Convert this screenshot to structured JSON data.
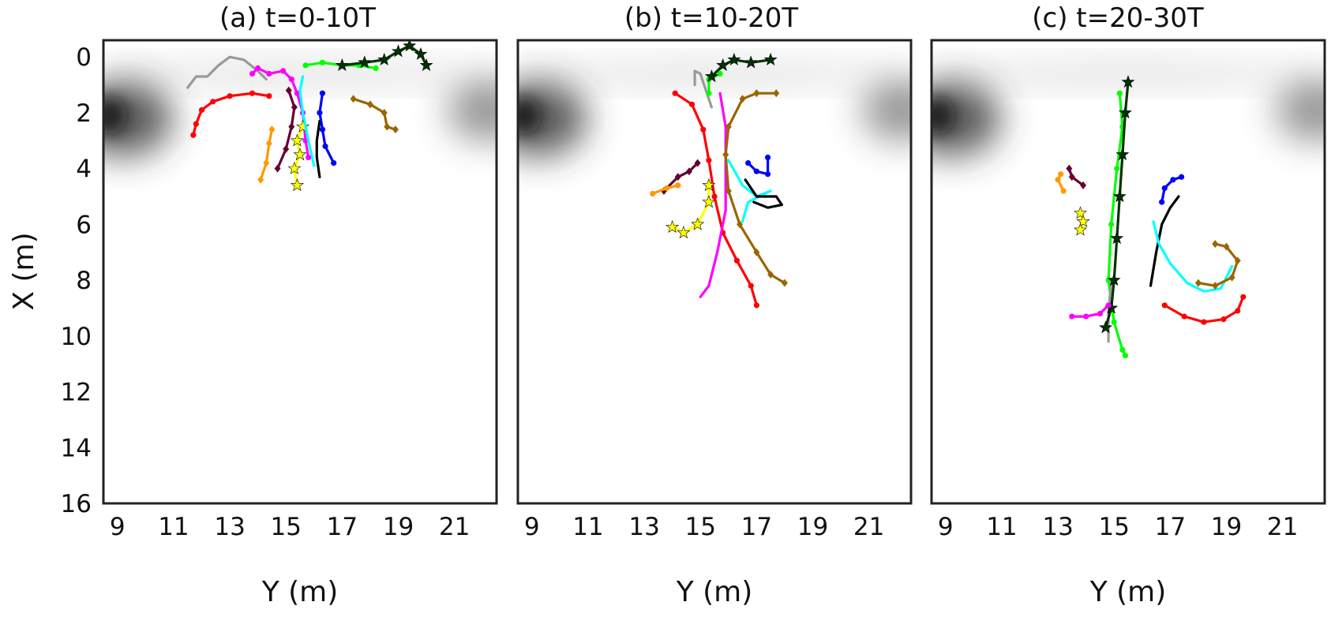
{
  "chart_data": [
    {
      "type": "line",
      "panel": "a",
      "title": "(a) t=0-10T",
      "xlabel": "Y (m)",
      "ylabel": "X (m)",
      "xlim": [
        8.5,
        22.5
      ],
      "ylim": [
        16,
        -0.6
      ],
      "xticks": [
        9,
        11,
        13,
        15,
        17,
        19,
        21
      ],
      "yticks": [
        0,
        2,
        4,
        6,
        8,
        10,
        12,
        14,
        16
      ],
      "background": "grayscale density, dark at upper-left and upper-right edges",
      "series": [
        {
          "color": "#ff0000",
          "marker": "dot",
          "points": [
            [
              11.7,
              2.8
            ],
            [
              11.8,
              2.4
            ],
            [
              12.0,
              1.9
            ],
            [
              12.4,
              1.6
            ],
            [
              13.0,
              1.4
            ],
            [
              13.8,
              1.3
            ],
            [
              14.4,
              1.4
            ]
          ]
        },
        {
          "color": "#999999",
          "marker": "none",
          "points": [
            [
              11.5,
              1.1
            ],
            [
              11.8,
              0.7
            ],
            [
              12.2,
              0.7
            ],
            [
              12.6,
              0.3
            ],
            [
              13.0,
              0.0
            ],
            [
              13.5,
              0.1
            ],
            [
              14.0,
              0.5
            ],
            [
              14.3,
              0.8
            ]
          ]
        },
        {
          "color": "#ff00ff",
          "marker": "dot",
          "points": [
            [
              13.8,
              0.6
            ],
            [
              14.0,
              0.4
            ],
            [
              14.4,
              0.6
            ],
            [
              14.9,
              0.5
            ],
            [
              15.2,
              0.8
            ],
            [
              15.4,
              1.3
            ],
            [
              15.6,
              2.0
            ],
            [
              15.7,
              3.0
            ],
            [
              15.8,
              3.6
            ]
          ]
        },
        {
          "color": "#ff9900",
          "marker": "diamond",
          "points": [
            [
              14.1,
              4.4
            ],
            [
              14.3,
              3.8
            ],
            [
              14.4,
              3.1
            ],
            [
              14.5,
              2.6
            ]
          ]
        },
        {
          "color": "#660033",
          "marker": "diamond",
          "points": [
            [
              14.7,
              4.0
            ],
            [
              15.0,
              3.3
            ],
            [
              15.2,
              2.5
            ],
            [
              15.3,
              1.8
            ],
            [
              15.1,
              1.2
            ]
          ]
        },
        {
          "color": "#ffff00",
          "marker": "star",
          "points": [
            [
              15.4,
              4.6
            ],
            [
              15.3,
              4.0
            ],
            [
              15.5,
              3.5
            ],
            [
              15.4,
              3.0
            ],
            [
              15.6,
              2.5
            ]
          ]
        },
        {
          "color": "#00ffff",
          "marker": "none",
          "points": [
            [
              16.0,
              3.9
            ],
            [
              15.8,
              3.0
            ],
            [
              15.6,
              2.0
            ],
            [
              15.5,
              1.2
            ],
            [
              15.6,
              0.7
            ]
          ]
        },
        {
          "color": "#000000",
          "marker": "none",
          "points": [
            [
              16.2,
              4.3
            ],
            [
              16.1,
              3.6
            ],
            [
              16.1,
              3.0
            ],
            [
              16.2,
              2.3
            ]
          ]
        },
        {
          "color": "#0000ff",
          "marker": "dot",
          "points": [
            [
              16.3,
              1.3
            ],
            [
              16.2,
              2.0
            ],
            [
              16.3,
              2.6
            ],
            [
              16.4,
              3.2
            ],
            [
              16.7,
              3.8
            ]
          ]
        },
        {
          "color": "#00ff00",
          "marker": "dot",
          "points": [
            [
              15.7,
              0.3
            ],
            [
              16.3,
              0.2
            ],
            [
              17.0,
              0.3
            ],
            [
              17.6,
              0.3
            ],
            [
              18.2,
              0.4
            ]
          ]
        },
        {
          "color": "#003300",
          "marker": "star",
          "points": [
            [
              17.0,
              0.3
            ],
            [
              17.8,
              0.2
            ],
            [
              18.5,
              0.1
            ],
            [
              19.0,
              -0.2
            ],
            [
              19.4,
              -0.4
            ],
            [
              19.8,
              -0.1
            ],
            [
              20.0,
              0.3
            ]
          ]
        },
        {
          "color": "#996600",
          "marker": "diamond",
          "points": [
            [
              17.4,
              1.5
            ],
            [
              18.0,
              1.7
            ],
            [
              18.5,
              2.0
            ],
            [
              18.6,
              2.5
            ],
            [
              18.9,
              2.6
            ]
          ]
        }
      ]
    },
    {
      "type": "line",
      "panel": "b",
      "title": "(b) t=10-20T",
      "xlabel": "Y (m)",
      "ylabel": "",
      "xlim": [
        8.5,
        22.5
      ],
      "ylim": [
        16,
        -0.6
      ],
      "xticks": [
        9,
        11,
        13,
        15,
        17,
        19,
        21
      ],
      "yticks": [],
      "background": "grayscale density, dark at upper-left and upper-right edges",
      "series": [
        {
          "color": "#ff0000",
          "marker": "dot",
          "points": [
            [
              14.1,
              1.3
            ],
            [
              14.7,
              1.7
            ],
            [
              15.1,
              2.6
            ],
            [
              15.3,
              3.7
            ],
            [
              15.5,
              5.0
            ],
            [
              15.8,
              6.3
            ],
            [
              16.3,
              7.3
            ],
            [
              16.8,
              8.2
            ],
            [
              17.0,
              8.9
            ]
          ]
        },
        {
          "color": "#ff00ff",
          "marker": "none",
          "points": [
            [
              15.7,
              1.3
            ],
            [
              15.9,
              2.5
            ],
            [
              15.9,
              4.0
            ],
            [
              15.9,
              5.5
            ],
            [
              15.6,
              7.0
            ],
            [
              15.3,
              8.2
            ],
            [
              15.0,
              8.6
            ]
          ]
        },
        {
          "color": "#996600",
          "marker": "diamond",
          "points": [
            [
              17.7,
              1.3
            ],
            [
              17.0,
              1.3
            ],
            [
              16.5,
              1.5
            ],
            [
              16.0,
              2.5
            ],
            [
              15.9,
              3.5
            ],
            [
              16.0,
              4.8
            ],
            [
              16.4,
              6.0
            ],
            [
              17.0,
              7.0
            ],
            [
              17.5,
              7.8
            ],
            [
              18.0,
              8.1
            ]
          ]
        },
        {
          "color": "#999999",
          "marker": "none",
          "points": [
            [
              14.8,
              1.0
            ],
            [
              14.8,
              0.5
            ],
            [
              15.0,
              0.6
            ],
            [
              15.2,
              1.2
            ],
            [
              15.4,
              1.8
            ]
          ]
        },
        {
          "color": "#00ff00",
          "marker": "dot",
          "points": [
            [
              15.3,
              1.3
            ],
            [
              15.3,
              0.8
            ],
            [
              15.7,
              0.6
            ]
          ]
        },
        {
          "color": "#003300",
          "marker": "star",
          "points": [
            [
              15.4,
              0.7
            ],
            [
              15.8,
              0.3
            ],
            [
              16.2,
              0.1
            ],
            [
              16.8,
              0.2
            ],
            [
              17.5,
              0.1
            ]
          ]
        },
        {
          "color": "#660033",
          "marker": "diamond",
          "points": [
            [
              13.7,
              4.8
            ],
            [
              14.2,
              4.3
            ],
            [
              14.6,
              4.1
            ],
            [
              14.9,
              3.8
            ]
          ]
        },
        {
          "color": "#ff9900",
          "marker": "dot",
          "points": [
            [
              13.3,
              4.9
            ],
            [
              13.8,
              4.7
            ],
            [
              14.2,
              4.6
            ]
          ]
        },
        {
          "color": "#ffff00",
          "marker": "star",
          "points": [
            [
              14.0,
              6.1
            ],
            [
              14.4,
              6.3
            ],
            [
              14.9,
              6.0
            ],
            [
              15.3,
              5.2
            ],
            [
              15.3,
              4.6
            ]
          ]
        },
        {
          "color": "#0000ff",
          "marker": "dot",
          "points": [
            [
              16.7,
              3.8
            ],
            [
              17.0,
              4.1
            ],
            [
              17.4,
              4.2
            ],
            [
              17.4,
              3.6
            ]
          ]
        },
        {
          "color": "#00ffff",
          "marker": "none",
          "points": [
            [
              16.0,
              3.7
            ],
            [
              16.5,
              4.6
            ],
            [
              17.0,
              5.0
            ],
            [
              17.5,
              4.8
            ],
            [
              16.7,
              5.2
            ],
            [
              16.5,
              5.9
            ]
          ]
        },
        {
          "color": "#000000",
          "marker": "none",
          "points": [
            [
              16.6,
              4.4
            ],
            [
              17.0,
              5.0
            ],
            [
              17.7,
              5.0
            ],
            [
              17.9,
              5.3
            ],
            [
              17.4,
              5.4
            ],
            [
              16.9,
              5.2
            ]
          ]
        }
      ]
    },
    {
      "type": "line",
      "panel": "c",
      "title": "(c) t=20-30T",
      "xlabel": "Y (m)",
      "ylabel": "",
      "xlim": [
        8.5,
        22.5
      ],
      "ylim": [
        16,
        -0.6
      ],
      "xticks": [
        9,
        11,
        13,
        15,
        17,
        19,
        21
      ],
      "yticks": [],
      "background": "grayscale density, dark at upper-left and upper-right edges",
      "series": [
        {
          "color": "#00ff00",
          "marker": "dot",
          "points": [
            [
              15.2,
              1.3
            ],
            [
              15.3,
              2.5
            ],
            [
              15.1,
              4.0
            ],
            [
              14.9,
              6.0
            ],
            [
              14.8,
              8.0
            ],
            [
              15.0,
              9.5
            ],
            [
              15.3,
              10.5
            ],
            [
              15.4,
              10.7
            ]
          ]
        },
        {
          "color": "#999999",
          "marker": "none",
          "points": [
            [
              14.8,
              10.2
            ],
            [
              14.8,
              9.2
            ],
            [
              14.9,
              8.0
            ]
          ]
        },
        {
          "color": "#003300",
          "marker": "star",
          "points": [
            [
              15.5,
              0.9
            ],
            [
              15.4,
              2.0
            ],
            [
              15.3,
              3.5
            ],
            [
              15.2,
              5.0
            ],
            [
              15.1,
              6.5
            ],
            [
              15.0,
              8.0
            ],
            [
              14.9,
              9.0
            ],
            [
              14.7,
              9.7
            ]
          ]
        },
        {
          "color": "#ff00ff",
          "marker": "dot",
          "points": [
            [
              13.5,
              9.3
            ],
            [
              14.0,
              9.3
            ],
            [
              14.5,
              9.2
            ],
            [
              14.8,
              8.9
            ]
          ]
        },
        {
          "color": "#ff9900",
          "marker": "dot",
          "points": [
            [
              13.1,
              4.2
            ],
            [
              13.0,
              4.4
            ],
            [
              13.2,
              4.8
            ]
          ]
        },
        {
          "color": "#660033",
          "marker": "diamond",
          "points": [
            [
              13.4,
              4.0
            ],
            [
              13.5,
              4.3
            ],
            [
              13.9,
              4.6
            ]
          ]
        },
        {
          "color": "#ffff00",
          "marker": "star",
          "points": [
            [
              13.8,
              5.6
            ],
            [
              13.9,
              5.9
            ],
            [
              13.8,
              6.2
            ]
          ]
        },
        {
          "color": "#0000ff",
          "marker": "dot",
          "points": [
            [
              16.7,
              5.2
            ],
            [
              16.8,
              4.7
            ],
            [
              17.1,
              4.4
            ],
            [
              17.4,
              4.3
            ]
          ]
        },
        {
          "color": "#000000",
          "marker": "none",
          "points": [
            [
              16.3,
              8.2
            ],
            [
              16.5,
              7.0
            ],
            [
              16.7,
              6.0
            ],
            [
              17.0,
              5.4
            ],
            [
              17.3,
              5.0
            ]
          ]
        },
        {
          "color": "#00ffff",
          "marker": "none",
          "points": [
            [
              16.4,
              5.9
            ],
            [
              16.6,
              6.7
            ],
            [
              17.0,
              7.4
            ],
            [
              17.6,
              8.1
            ],
            [
              18.2,
              8.4
            ],
            [
              18.8,
              8.3
            ],
            [
              19.2,
              7.5
            ]
          ]
        },
        {
          "color": "#996600",
          "marker": "diamond",
          "points": [
            [
              18.0,
              8.1
            ],
            [
              18.6,
              8.2
            ],
            [
              19.2,
              7.9
            ],
            [
              19.4,
              7.3
            ],
            [
              19.0,
              6.8
            ],
            [
              18.6,
              6.7
            ]
          ]
        },
        {
          "color": "#ff0000",
          "marker": "dot",
          "points": [
            [
              16.8,
              8.9
            ],
            [
              17.5,
              9.3
            ],
            [
              18.2,
              9.5
            ],
            [
              18.9,
              9.4
            ],
            [
              19.4,
              9.1
            ],
            [
              19.6,
              8.6
            ]
          ]
        }
      ]
    }
  ]
}
